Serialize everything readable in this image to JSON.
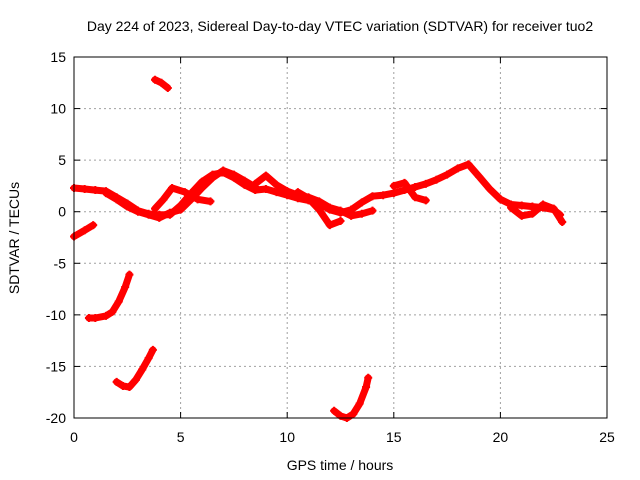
{
  "chart_data": {
    "type": "scatter",
    "title": "Day 224 of 2023, Sidereal Day-to-day VTEC variation (SDTVAR) for receiver tuo2",
    "xlabel": "GPS time / hours",
    "ylabel": "SDTVAR / TECUs",
    "xlim": [
      0,
      25
    ],
    "ylim": [
      -20,
      15
    ],
    "xticks": [
      0,
      5,
      10,
      15,
      20,
      25
    ],
    "xtick_labels": [
      "0",
      "5",
      "10",
      "15",
      "20",
      "25"
    ],
    "yticks": [
      -20,
      -15,
      -10,
      -5,
      0,
      5,
      10,
      15
    ],
    "ytick_labels": [
      "-20",
      "-15",
      "-10",
      "-5",
      "0",
      "5",
      "10",
      "15"
    ],
    "grid": true,
    "marker_color": "#ff0000",
    "series": [
      {
        "name": "main-band-a",
        "x": [
          0,
          0.5,
          1,
          1.5,
          2,
          2.5,
          3,
          3.5,
          4,
          4.5,
          5,
          5.5,
          6,
          6.5,
          7,
          7.5,
          8,
          8.5,
          9,
          9.5,
          10,
          10.5,
          11,
          11.5,
          12,
          12.5,
          13,
          13.5,
          14,
          14.5,
          15,
          15.5,
          16,
          16.5,
          17,
          17.5,
          18,
          18.5,
          19,
          19.5,
          20,
          20.5,
          21,
          21.5,
          22,
          22.5,
          22.8
        ],
        "values": [
          2.3,
          2.2,
          2.1,
          2.0,
          1.4,
          0.8,
          0.1,
          -0.2,
          -0.3,
          -0.3,
          0.6,
          1.8,
          2.9,
          3.6,
          3.8,
          3.3,
          2.6,
          2.1,
          2.2,
          1.9,
          1.6,
          1.3,
          1.1,
          0.8,
          0.2,
          -0.1,
          0.2,
          0.9,
          1.5,
          1.6,
          1.8,
          2.1,
          2.4,
          2.7,
          3.1,
          3.6,
          4.2,
          4.6,
          3.4,
          2.2,
          1.2,
          0.7,
          0.6,
          0.5,
          0.4,
          0.2,
          -0.3
        ]
      },
      {
        "name": "main-band-b",
        "x": [
          1.5,
          2,
          2.5,
          3,
          3.5,
          4,
          4.5,
          5,
          5.5,
          6,
          6.5,
          7,
          7.5,
          8,
          8.5
        ],
        "values": [
          1.8,
          1.2,
          0.5,
          0.0,
          -0.3,
          -0.6,
          -0.1,
          0.2,
          1.2,
          2.3,
          3.3,
          4.0,
          3.6,
          3.0,
          2.4
        ]
      },
      {
        "name": "main-band-c",
        "x": [
          3.8,
          4.2,
          4.6,
          5.2,
          5.8,
          6.4
        ],
        "values": [
          0.3,
          1.2,
          2.3,
          1.9,
          1.2,
          1.0
        ]
      },
      {
        "name": "main-band-d",
        "x": [
          8.5,
          9,
          9.5,
          10,
          10.5,
          11,
          11.5,
          12,
          12.5,
          13,
          13.5,
          14
        ],
        "values": [
          2.7,
          3.5,
          2.6,
          2.0,
          1.6,
          1.4,
          1.0,
          0.4,
          0.1,
          -0.4,
          -0.2,
          0.1
        ]
      },
      {
        "name": "main-band-e",
        "x": [
          10.5,
          11,
          11.5,
          12,
          12.5
        ],
        "values": [
          1.9,
          1.3,
          0.2,
          -1.3,
          -0.9
        ]
      },
      {
        "name": "main-band-f",
        "x": [
          15,
          15.5,
          16,
          16.5
        ],
        "values": [
          2.5,
          2.8,
          1.4,
          1.1
        ]
      },
      {
        "name": "main-band-g",
        "x": [
          20.5,
          21,
          21.5,
          22,
          22.5,
          22.9
        ],
        "values": [
          0.4,
          -0.4,
          -0.2,
          0.7,
          0.3,
          -1.0
        ]
      },
      {
        "name": "segment-start-0",
        "x": [
          0,
          0.5,
          0.9
        ],
        "values": [
          -2.4,
          -1.8,
          -1.3
        ]
      },
      {
        "name": "segment-top-12",
        "x": [
          3.8,
          4.1,
          4.4
        ],
        "values": [
          12.8,
          12.5,
          12.0
        ]
      },
      {
        "name": "segment-minus-10",
        "x": [
          0.7,
          1,
          1.5,
          1.8,
          2.1,
          2.4,
          2.6
        ],
        "values": [
          -10.3,
          -10.3,
          -10.1,
          -9.7,
          -8.7,
          -7.3,
          -6.1
        ]
      },
      {
        "name": "segment-minus-16",
        "x": [
          2.0,
          2.3,
          2.6,
          2.9,
          3.2,
          3.5,
          3.7
        ],
        "values": [
          -16.5,
          -16.9,
          -17.0,
          -16.3,
          -15.3,
          -14.2,
          -13.4
        ]
      },
      {
        "name": "segment-minus-19",
        "x": [
          12.2,
          12.5,
          12.8,
          13.1,
          13.4,
          13.7,
          13.8
        ],
        "values": [
          -19.3,
          -19.8,
          -20.0,
          -19.6,
          -18.6,
          -17.0,
          -16.1
        ]
      }
    ]
  }
}
